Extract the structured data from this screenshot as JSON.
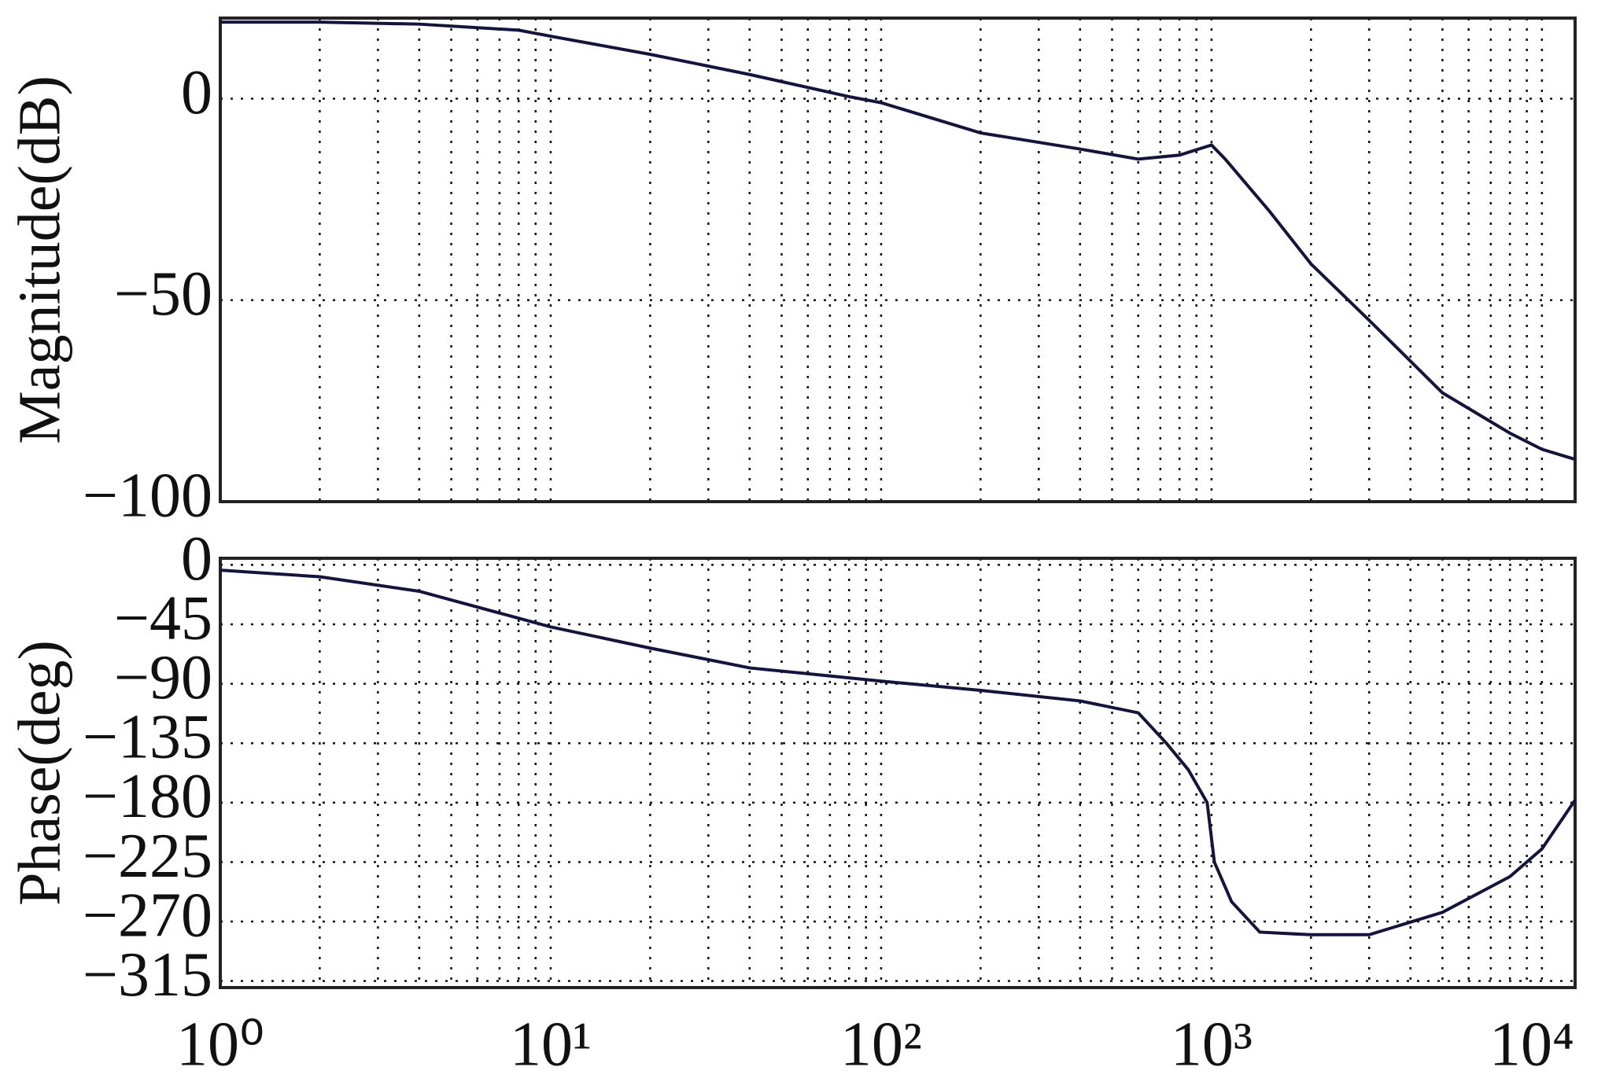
{
  "chart_data": [
    {
      "type": "line",
      "ylabel": "Magnitude(dB)",
      "log_x": true,
      "grid": true,
      "xlim": [
        1,
        12600
      ],
      "ylim": [
        -100,
        20
      ],
      "xticks": [
        1,
        10,
        100,
        1000,
        10000
      ],
      "yticks": [
        {
          "value": 0,
          "label": "0"
        },
        {
          "value": -50,
          "label": "−50"
        },
        {
          "value": -100,
          "label": "−100"
        }
      ],
      "x": [
        1,
        2,
        4,
        8,
        10,
        20,
        40,
        80,
        100,
        200,
        400,
        600,
        800,
        1000,
        1100,
        1500,
        2000,
        3000,
        5000,
        8000,
        10000,
        12600
      ],
      "series": [
        {
          "color": "#14143c",
          "values": [
            19,
            19,
            18.5,
            17,
            15.5,
            11,
            6,
            0.5,
            -1,
            -8.5,
            -12.5,
            -15,
            -14,
            -11.5,
            -15,
            -28,
            -41,
            -55,
            -73,
            -83,
            -87,
            -89.5
          ]
        }
      ]
    },
    {
      "type": "line",
      "ylabel": "Phase(deg)",
      "log_x": true,
      "grid": true,
      "xlim": [
        1,
        12600
      ],
      "ylim": [
        -320,
        5
      ],
      "xticks": [
        {
          "value": 1,
          "label": "10⁰"
        },
        {
          "value": 10,
          "label": "10¹"
        },
        {
          "value": 100,
          "label": "10²"
        },
        {
          "value": 1000,
          "label": "10³"
        },
        {
          "value": 10000,
          "label": "10⁴"
        }
      ],
      "yticks": [
        {
          "value": 0,
          "label": "0"
        },
        {
          "value": -45,
          "label": "−45"
        },
        {
          "value": -90,
          "label": "−90"
        },
        {
          "value": -135,
          "label": "−135"
        },
        {
          "value": -180,
          "label": "−180"
        },
        {
          "value": -225,
          "label": "−225"
        },
        {
          "value": -270,
          "label": "−270"
        },
        {
          "value": -315,
          "label": "−315"
        }
      ],
      "x": [
        1,
        2,
        4,
        10,
        20,
        40,
        100,
        200,
        400,
        600,
        730,
        850,
        970,
        1020,
        1150,
        1400,
        2000,
        3000,
        5000,
        8000,
        10000,
        12600
      ],
      "series": [
        {
          "color": "#14143c",
          "values": [
            -4,
            -9,
            -20,
            -47,
            -63,
            -78,
            -88,
            -95,
            -103,
            -112,
            -135,
            -155,
            -180,
            -225,
            -255,
            -278,
            -280,
            -280,
            -263,
            -236,
            -215,
            -178
          ]
        }
      ]
    }
  ]
}
